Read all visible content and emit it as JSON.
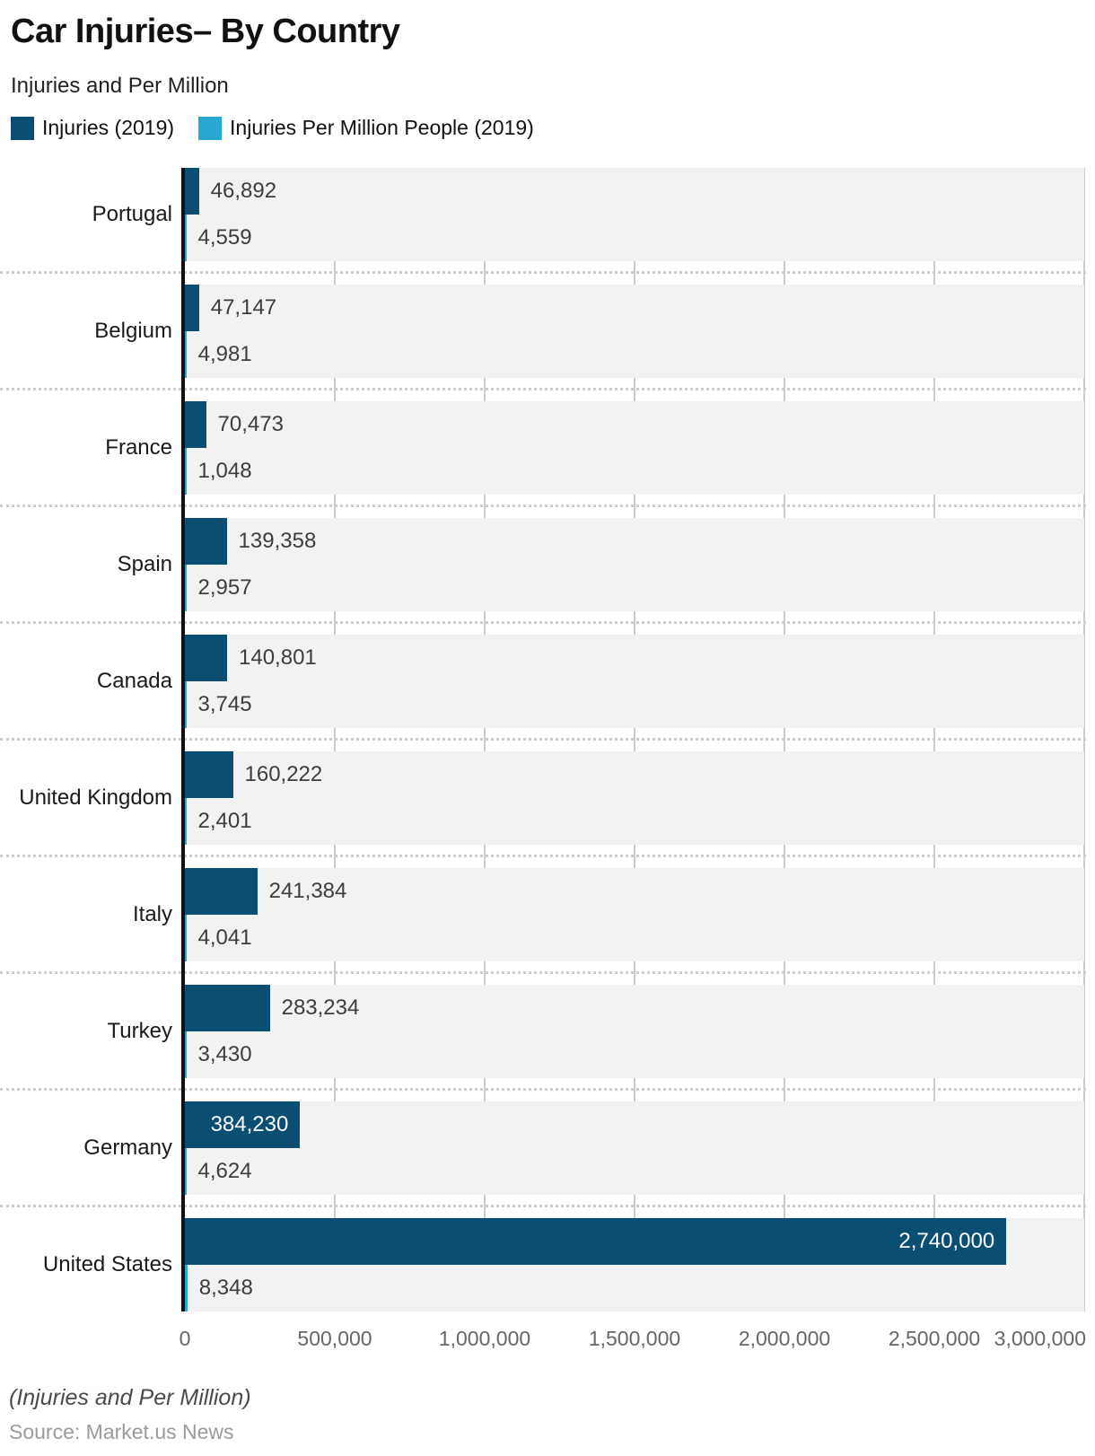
{
  "header": {
    "title": "Car Injuries– By Country",
    "subtitle": "Injuries and Per Million"
  },
  "legend": [
    {
      "label": "Injuries (2019)",
      "color": "#0b4e74"
    },
    {
      "label": "Injuries Per Million People (2019)",
      "color": "#29a6d2"
    }
  ],
  "chart_data": {
    "type": "bar",
    "orientation": "horizontal",
    "title": "Car Injuries– By Country",
    "subtitle": "Injuries and Per Million",
    "categories": [
      "Portugal",
      "Belgium",
      "France",
      "Spain",
      "Canada",
      "United Kingdom",
      "Italy",
      "Turkey",
      "Germany",
      "United States"
    ],
    "series": [
      {
        "name": "Injuries (2019)",
        "color": "#0b4e74",
        "values": [
          46892,
          47147,
          70473,
          139358,
          140801,
          160222,
          241384,
          283234,
          384230,
          2740000
        ],
        "labels": [
          "46,892",
          "47,147",
          "70,473",
          "139,358",
          "140,801",
          "160,222",
          "241,384",
          "283,234",
          "384,230",
          "2,740,000"
        ]
      },
      {
        "name": "Injuries Per Million People (2019)",
        "color": "#29a6d2",
        "values": [
          4559,
          4981,
          1048,
          2957,
          3745,
          2401,
          4041,
          3430,
          4624,
          8348
        ],
        "labels": [
          "4,559",
          "4,981",
          "1,048",
          "2,957",
          "3,745",
          "2,401",
          "4,041",
          "3,430",
          "4,624",
          "8,348"
        ]
      }
    ],
    "xlim": [
      0,
      3000000
    ],
    "x_ticks": [
      "0",
      "500,000",
      "1,000,000",
      "1,500,000",
      "2,000,000",
      "2,500,000",
      "3,000,000"
    ],
    "grid": true,
    "band_background": "#f2f2f2",
    "gridline_color": "#cccccc",
    "legend_position": "top"
  },
  "footer": {
    "note": "(Injuries and Per Million)",
    "source": "Source: Market.us News"
  }
}
